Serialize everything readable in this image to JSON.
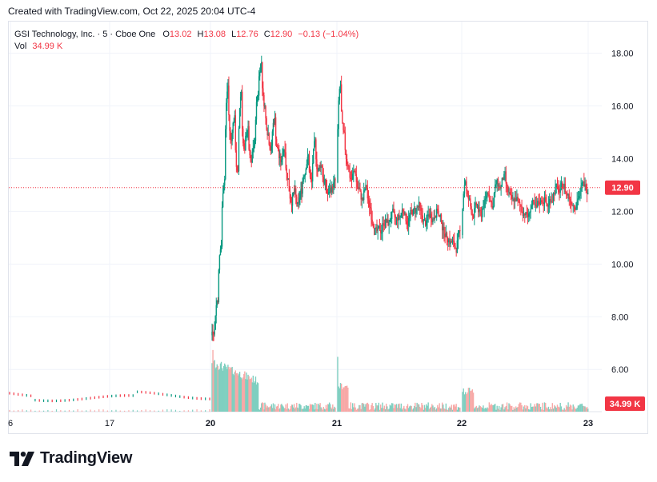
{
  "header": {
    "created_text": "Created with TradingView.com, Oct 22, 2025 20:04 UTC-4"
  },
  "legend": {
    "symbol": "GSI Technology, Inc. · 5 · Cboe One",
    "open_label": "O",
    "open": "13.02",
    "high_label": "H",
    "high": "13.08",
    "low_label": "L",
    "low": "12.76",
    "close_label": "C",
    "close": "12.90",
    "change": "−0.13 (−1.04%)",
    "vol_label": "Vol",
    "vol": "34.99 K"
  },
  "brand": {
    "name": "TradingView"
  },
  "colors": {
    "up": "#089981",
    "down": "#f23645",
    "grid": "#f0f3fa",
    "text": "#131722"
  },
  "chart_data": {
    "type": "candlestick",
    "title": "GSI Technology, Inc. · 5 · Cboe One",
    "ylim": [
      4.4,
      19.2
    ],
    "y_ticks": [
      "18.00",
      "16.00",
      "14.00",
      "12.00",
      "10.00",
      "8.00",
      "6.00"
    ],
    "x_ticks": [
      "6",
      "17",
      "20",
      "21",
      "22",
      "23"
    ],
    "x_ticks_bold": [
      "20",
      "21",
      "22",
      "23"
    ],
    "last_price_label": "12.90",
    "last_price": 12.9,
    "volume_label": "34.99 K",
    "sessions": [
      {
        "label": "pre-20",
        "bars": 48,
        "start": 5.1,
        "end": 5.0,
        "kind": "flat"
      },
      {
        "label": "20",
        "closes": [
          7.6,
          8.8,
          10.8,
          13.5,
          17.0,
          14.5,
          15.6,
          13.2,
          16.8,
          14.0,
          15.2,
          13.6,
          14.6,
          16.6,
          17.8,
          15.9,
          15.0,
          14.4,
          15.6,
          14.2,
          13.8,
          14.5,
          13.2,
          12.4,
          12.7,
          12.1,
          12.8,
          13.6,
          14.1,
          13.0,
          14.6,
          13.5,
          13.8,
          13.0,
          12.6,
          12.9,
          13.1
        ],
        "kind": "path"
      },
      {
        "label": "21",
        "closes": [
          17.0,
          14.6,
          13.8,
          13.2,
          13.5,
          12.8,
          12.4,
          12.9,
          12.1,
          11.6,
          11.1,
          11.3,
          11.7,
          11.5,
          11.9,
          11.6,
          11.8,
          12.1,
          11.6,
          11.9,
          12.0,
          12.2,
          11.7,
          11.5,
          11.9,
          11.8,
          12.1,
          11.6,
          11.2,
          11.0,
          10.8,
          10.6,
          11.1
        ],
        "kind": "path"
      },
      {
        "label": "22",
        "closes": [
          13.4,
          12.3,
          11.9,
          12.2,
          11.8,
          12.4,
          12.8,
          12.2,
          13.1,
          12.9,
          13.3,
          12.6,
          12.3,
          12.5,
          12.1,
          12.0,
          11.8,
          12.3,
          12.0,
          12.4,
          12.5,
          12.2,
          12.6,
          12.9,
          12.7,
          13.0,
          12.6,
          12.4,
          12.3,
          12.7,
          13.0,
          12.9
        ],
        "kind": "path"
      }
    ],
    "volume": {
      "scale_max": 7.7,
      "note": "relative bar heights in chart units above axis"
    }
  }
}
